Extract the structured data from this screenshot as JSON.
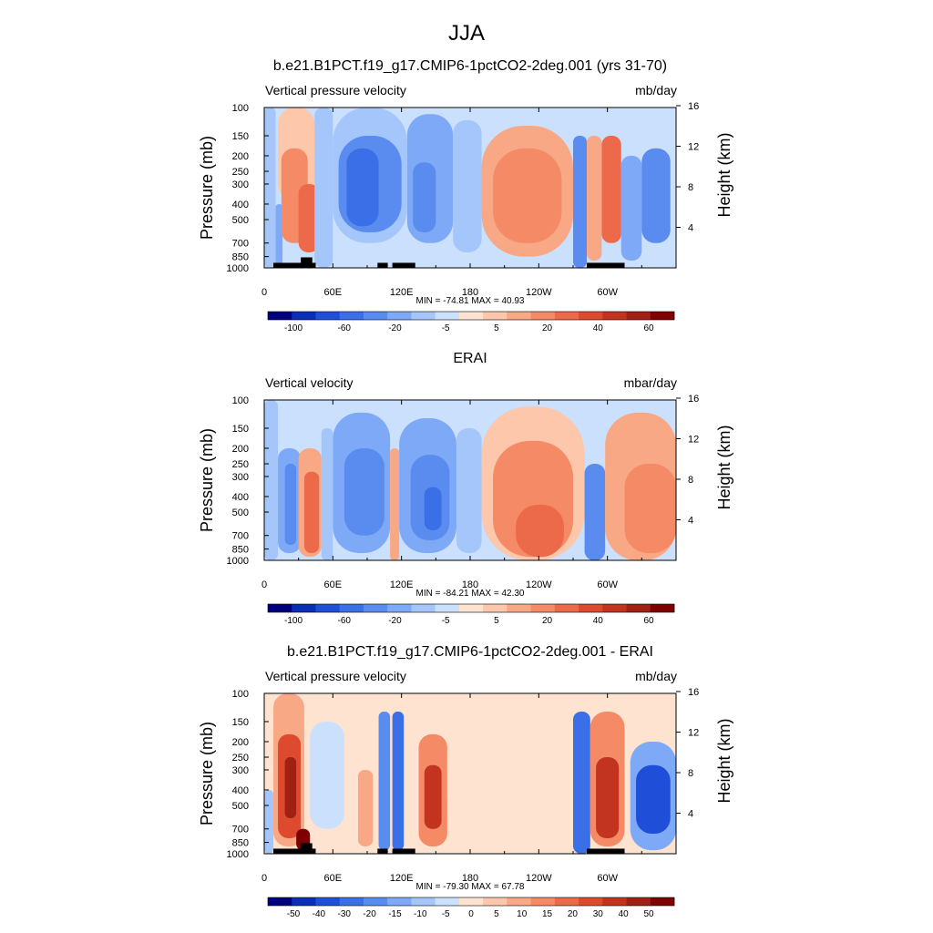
{
  "figure": {
    "title": "JJA"
  },
  "chart_data": [
    {
      "type": "heatmap",
      "title": "b.e21.B1PCT.f19_g17.CMIP6-1pctCO2-2deg.001 (yrs 31-70)",
      "left_label": "Vertical pressure velocity",
      "right_label": "mb/day",
      "xlabel": "",
      "ylabel": "Pressure (mb)",
      "ylabel_right": "Height (km)",
      "x_tick_labels": [
        "0",
        "60E",
        "120E",
        "180",
        "120W",
        "60W"
      ],
      "x_tick_lon": [
        0,
        60,
        120,
        180,
        240,
        300
      ],
      "xlim": [
        0,
        360
      ],
      "y_tick_labels": [
        "100",
        "150",
        "200",
        "250",
        "300",
        "400",
        "500",
        "700",
        "850",
        "1000"
      ],
      "y_tick_p": [
        100,
        150,
        200,
        250,
        300,
        400,
        500,
        700,
        850,
        1000
      ],
      "ylim": [
        1000,
        100
      ],
      "y_scale": "log",
      "right_tick_labels": [
        "4",
        "8",
        "12",
        "16"
      ],
      "right_tick_km": [
        4,
        8,
        12,
        16
      ],
      "min": -74.81,
      "max": 40.93,
      "stats_text": "MIN = -74.81  MAX = 40.93",
      "colorbar_labels": [
        "-100",
        "-60",
        "-20",
        "-5",
        "5",
        "20",
        "40",
        "60"
      ],
      "colorbar_colors": [
        "#00007f",
        "#0a2eb5",
        "#1f4fd9",
        "#3b6fe8",
        "#5a8cf0",
        "#7ea9f6",
        "#a5c6fa",
        "#cbe0fc",
        "#fde3d0",
        "#fcc7aa",
        "#f9a886",
        "#f48a66",
        "#ec6a49",
        "#de4a2e",
        "#c23420",
        "#a02014",
        "#7f0000"
      ],
      "colorbar_levels": [
        -100,
        -80,
        -60,
        -40,
        -20,
        -10,
        -5,
        0,
        5,
        10,
        20,
        30,
        40,
        50,
        60,
        80
      ],
      "regions": [
        {
          "lon": [
            0,
            10
          ],
          "p": [
            100,
            1000
          ],
          "value": -6
        },
        {
          "lon": [
            10,
            16
          ],
          "p": [
            400,
            950
          ],
          "value": -20
        },
        {
          "lon": [
            12,
            44
          ],
          "p": [
            100,
            380
          ],
          "value": 8
        },
        {
          "lon": [
            15,
            38
          ],
          "p": [
            180,
            700
          ],
          "value": 22
        },
        {
          "lon": [
            30,
            48
          ],
          "p": [
            300,
            800
          ],
          "value": 30
        },
        {
          "lon": [
            44,
            60
          ],
          "p": [
            100,
            1000
          ],
          "value": -6
        },
        {
          "lon": [
            60,
            125
          ],
          "p": [
            100,
            700
          ],
          "value": -10
        },
        {
          "lon": [
            65,
            120
          ],
          "p": [
            150,
            600
          ],
          "value": -25
        },
        {
          "lon": [
            72,
            100
          ],
          "p": [
            180,
            550
          ],
          "value": -45
        },
        {
          "lon": [
            125,
            165
          ],
          "p": [
            110,
            700
          ],
          "value": -20
        },
        {
          "lon": [
            130,
            150
          ],
          "p": [
            220,
            600
          ],
          "value": -40
        },
        {
          "lon": [
            165,
            190
          ],
          "p": [
            120,
            800
          ],
          "value": -6
        },
        {
          "lon": [
            190,
            270
          ],
          "p": [
            130,
            850
          ],
          "value": 10
        },
        {
          "lon": [
            200,
            260
          ],
          "p": [
            180,
            700
          ],
          "value": 22
        },
        {
          "lon": [
            270,
            282
          ],
          "p": [
            150,
            1000
          ],
          "value": -35
        },
        {
          "lon": [
            282,
            295
          ],
          "p": [
            150,
            900
          ],
          "value": 15
        },
        {
          "lon": [
            295,
            312
          ],
          "p": [
            150,
            700
          ],
          "value": 30
        },
        {
          "lon": [
            312,
            330
          ],
          "p": [
            200,
            900
          ],
          "value": -15
        },
        {
          "lon": [
            330,
            355
          ],
          "p": [
            180,
            700
          ],
          "value": -40
        }
      ],
      "topography": [
        {
          "lon": [
            8,
            45
          ],
          "p": 930
        },
        {
          "lon": [
            32,
            42
          ],
          "p": 860
        },
        {
          "lon": [
            99,
            108
          ],
          "p": 930
        },
        {
          "lon": [
            112,
            132
          ],
          "p": 930
        },
        {
          "lon": [
            282,
            315
          ],
          "p": 930
        }
      ]
    },
    {
      "type": "heatmap",
      "title": "ERAI",
      "left_label": "Vertical velocity",
      "right_label": "mbar/day",
      "xlabel": "",
      "ylabel": "Pressure (mb)",
      "ylabel_right": "Height (km)",
      "x_tick_labels": [
        "0",
        "60E",
        "120E",
        "180",
        "120W",
        "60W"
      ],
      "x_tick_lon": [
        0,
        60,
        120,
        180,
        240,
        300
      ],
      "xlim": [
        0,
        360
      ],
      "y_tick_labels": [
        "100",
        "150",
        "200",
        "250",
        "300",
        "400",
        "500",
        "700",
        "850",
        "1000"
      ],
      "y_tick_p": [
        100,
        150,
        200,
        250,
        300,
        400,
        500,
        700,
        850,
        1000
      ],
      "ylim": [
        1000,
        100
      ],
      "y_scale": "log",
      "right_tick_labels": [
        "4",
        "8",
        "12",
        "16"
      ],
      "right_tick_km": [
        4,
        8,
        12,
        16
      ],
      "min": -84.21,
      "max": 42.3,
      "stats_text": "MIN = -84.21  MAX = 42.30",
      "colorbar_labels": [
        "-100",
        "-60",
        "-20",
        "-5",
        "5",
        "20",
        "40",
        "60"
      ],
      "colorbar_colors": [
        "#00007f",
        "#0a2eb5",
        "#1f4fd9",
        "#3b6fe8",
        "#5a8cf0",
        "#7ea9f6",
        "#a5c6fa",
        "#cbe0fc",
        "#fde3d0",
        "#fcc7aa",
        "#f9a886",
        "#f48a66",
        "#ec6a49",
        "#de4a2e",
        "#c23420",
        "#a02014",
        "#7f0000"
      ],
      "colorbar_levels": [
        -100,
        -80,
        -60,
        -40,
        -20,
        -10,
        -5,
        0,
        5,
        10,
        20,
        30,
        40,
        50,
        60,
        80
      ],
      "regions": [
        {
          "lon": [
            0,
            12
          ],
          "p": [
            100,
            1000
          ],
          "value": -6
        },
        {
          "lon": [
            12,
            32
          ],
          "p": [
            200,
            900
          ],
          "value": -15
        },
        {
          "lon": [
            18,
            28
          ],
          "p": [
            250,
            800
          ],
          "value": -40
        },
        {
          "lon": [
            30,
            50
          ],
          "p": [
            200,
            950
          ],
          "value": 12
        },
        {
          "lon": [
            35,
            48
          ],
          "p": [
            280,
            900
          ],
          "value": 30
        },
        {
          "lon": [
            50,
            60
          ],
          "p": [
            150,
            1000
          ],
          "value": -6
        },
        {
          "lon": [
            60,
            110
          ],
          "p": [
            120,
            900
          ],
          "value": -15
        },
        {
          "lon": [
            70,
            105
          ],
          "p": [
            200,
            700
          ],
          "value": -35
        },
        {
          "lon": [
            110,
            118
          ],
          "p": [
            200,
            1000
          ],
          "value": 10
        },
        {
          "lon": [
            118,
            168
          ],
          "p": [
            130,
            900
          ],
          "value": -15
        },
        {
          "lon": [
            128,
            162
          ],
          "p": [
            220,
            750
          ],
          "value": -35
        },
        {
          "lon": [
            140,
            155
          ],
          "p": [
            350,
            650
          ],
          "value": -60
        },
        {
          "lon": [
            168,
            190
          ],
          "p": [
            150,
            900
          ],
          "value": -6
        },
        {
          "lon": [
            190,
            280
          ],
          "p": [
            110,
            1000
          ],
          "value": 8
        },
        {
          "lon": [
            200,
            270
          ],
          "p": [
            180,
            950
          ],
          "value": 20
        },
        {
          "lon": [
            220,
            262
          ],
          "p": [
            450,
            950
          ],
          "value": 35
        },
        {
          "lon": [
            280,
            298
          ],
          "p": [
            250,
            1000
          ],
          "value": -35
        },
        {
          "lon": [
            298,
            360
          ],
          "p": [
            120,
            1000
          ],
          "value": 10
        },
        {
          "lon": [
            315,
            360
          ],
          "p": [
            250,
            900
          ],
          "value": 22
        }
      ],
      "topography": []
    },
    {
      "type": "heatmap",
      "title": "b.e21.B1PCT.f19_g17.CMIP6-1pctCO2-2deg.001 - ERAI",
      "left_label": "Vertical pressure velocity",
      "right_label": "mb/day",
      "xlabel": "",
      "ylabel": "Pressure (mb)",
      "ylabel_right": "Height (km)",
      "x_tick_labels": [
        "0",
        "60E",
        "120E",
        "180",
        "120W",
        "60W"
      ],
      "x_tick_lon": [
        0,
        60,
        120,
        180,
        240,
        300
      ],
      "xlim": [
        0,
        360
      ],
      "y_tick_labels": [
        "100",
        "150",
        "200",
        "250",
        "300",
        "400",
        "500",
        "700",
        "850",
        "1000"
      ],
      "y_tick_p": [
        100,
        150,
        200,
        250,
        300,
        400,
        500,
        700,
        850,
        1000
      ],
      "ylim": [
        1000,
        100
      ],
      "y_scale": "log",
      "right_tick_labels": [
        "4",
        "8",
        "12",
        "16"
      ],
      "right_tick_km": [
        4,
        8,
        12,
        16
      ],
      "min": -79.3,
      "max": 67.78,
      "stats_text": "MIN = -79.30  MAX = 67.78",
      "colorbar_labels": [
        "-50",
        "-40",
        "-30",
        "-20",
        "-15",
        "-10",
        "-5",
        "0",
        "5",
        "10",
        "15",
        "20",
        "30",
        "40",
        "50"
      ],
      "colorbar_colors": [
        "#00007f",
        "#0a2eb5",
        "#1f4fd9",
        "#3b6fe8",
        "#5a8cf0",
        "#7ea9f6",
        "#a5c6fa",
        "#cbe0fc",
        "#fde3d0",
        "#fcc7aa",
        "#f9a886",
        "#f48a66",
        "#ec6a49",
        "#de4a2e",
        "#c23420",
        "#a02014",
        "#7f0000"
      ],
      "colorbar_levels": [
        -60,
        -50,
        -40,
        -30,
        -20,
        -15,
        -10,
        -5,
        0,
        5,
        10,
        15,
        20,
        30,
        40,
        50
      ],
      "regions": [
        {
          "lon": [
            0,
            8
          ],
          "p": [
            400,
            1000
          ],
          "value": -12
        },
        {
          "lon": [
            8,
            35
          ],
          "p": [
            100,
            900
          ],
          "value": 8
        },
        {
          "lon": [
            12,
            32
          ],
          "p": [
            180,
            800
          ],
          "value": 25
        },
        {
          "lon": [
            18,
            28
          ],
          "p": [
            250,
            600
          ],
          "value": 45
        },
        {
          "lon": [
            28,
            40
          ],
          "p": [
            700,
            950
          ],
          "value": 50
        },
        {
          "lon": [
            40,
            70
          ],
          "p": [
            150,
            700
          ],
          "value": -7
        },
        {
          "lon": [
            82,
            95
          ],
          "p": [
            300,
            900
          ],
          "value": 8
        },
        {
          "lon": [
            100,
            110
          ],
          "p": [
            130,
            950
          ],
          "value": -25
        },
        {
          "lon": [
            112,
            122
          ],
          "p": [
            130,
            950
          ],
          "value": -35
        },
        {
          "lon": [
            135,
            160
          ],
          "p": [
            180,
            900
          ],
          "value": 12
        },
        {
          "lon": [
            140,
            155
          ],
          "p": [
            280,
            700
          ],
          "value": 30
        },
        {
          "lon": [
            160,
            270
          ],
          "p": [
            100,
            1000
          ],
          "value": -3
        },
        {
          "lon": [
            270,
            285
          ],
          "p": [
            130,
            1000
          ],
          "value": -35
        },
        {
          "lon": [
            285,
            315
          ],
          "p": [
            130,
            900
          ],
          "value": 12
        },
        {
          "lon": [
            290,
            310
          ],
          "p": [
            250,
            800
          ],
          "value": 35
        },
        {
          "lon": [
            320,
            360
          ],
          "p": [
            200,
            950
          ],
          "value": -20
        },
        {
          "lon": [
            325,
            355
          ],
          "p": [
            280,
            750
          ],
          "value": -45
        }
      ],
      "topography": [
        {
          "lon": [
            8,
            45
          ],
          "p": 930
        },
        {
          "lon": [
            32,
            42
          ],
          "p": 860
        },
        {
          "lon": [
            99,
            108
          ],
          "p": 930
        },
        {
          "lon": [
            112,
            132
          ],
          "p": 930
        },
        {
          "lon": [
            282,
            315
          ],
          "p": 930
        }
      ]
    }
  ]
}
